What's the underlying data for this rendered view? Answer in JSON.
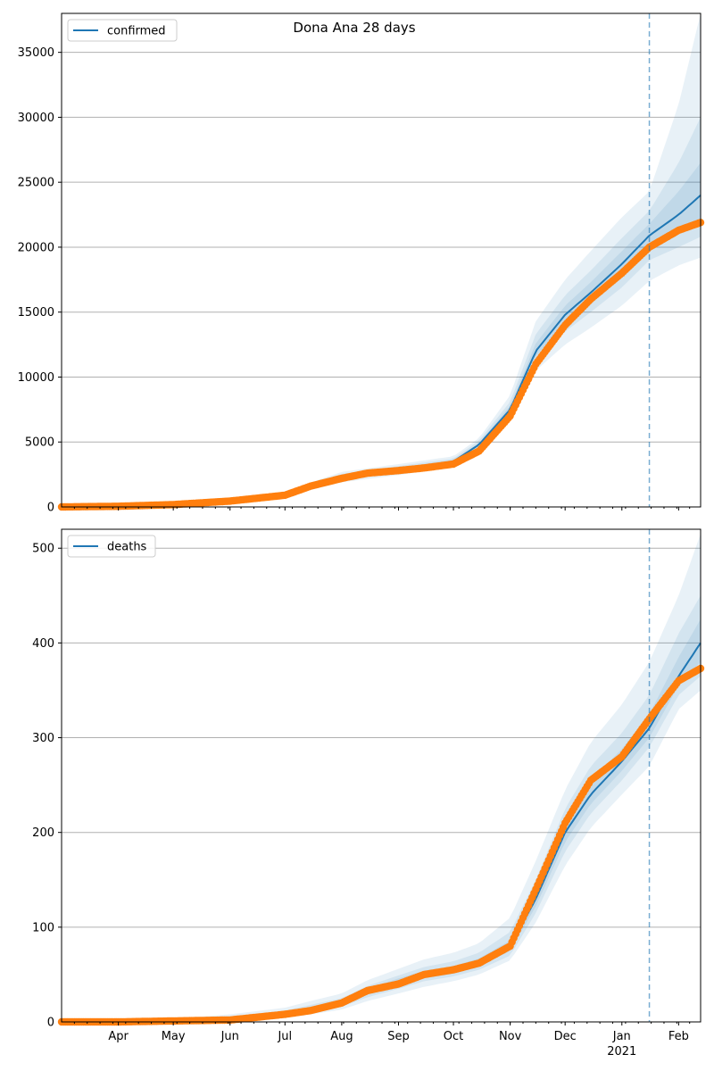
{
  "title": "Dona Ana 28 days",
  "colors": {
    "model_line": "#1f77b4",
    "observed_points": "#ff7f0e",
    "band": "#1f77b4",
    "grid": "#b0b0b0",
    "vline": "#1f77b4"
  },
  "x_axis": {
    "start": "2020-03-01",
    "end": "2021-02-13",
    "month_ticks": [
      {
        "date": "2020-04-01",
        "label": "Apr"
      },
      {
        "date": "2020-05-01",
        "label": "May"
      },
      {
        "date": "2020-06-01",
        "label": "Jun"
      },
      {
        "date": "2020-07-01",
        "label": "Jul"
      },
      {
        "date": "2020-08-01",
        "label": "Aug"
      },
      {
        "date": "2020-09-01",
        "label": "Sep"
      },
      {
        "date": "2020-10-01",
        "label": "Oct"
      },
      {
        "date": "2020-11-01",
        "label": "Nov"
      },
      {
        "date": "2020-12-01",
        "label": "Dec"
      },
      {
        "date": "2021-01-01",
        "label": "Jan"
      },
      {
        "date": "2021-02-01",
        "label": "Feb"
      }
    ],
    "year_label": {
      "date": "2021-01-01",
      "label": "2021"
    },
    "forecast_start": "2021-01-16"
  },
  "chart_data": [
    {
      "type": "line",
      "legend": "confirmed",
      "legend_position": "upper left",
      "ylim": [
        0,
        38000
      ],
      "yticks": [
        0,
        5000,
        10000,
        15000,
        20000,
        25000,
        30000,
        35000
      ],
      "grid": "y",
      "model": {
        "x": [
          "2020-03-01",
          "2020-04-01",
          "2020-05-01",
          "2020-06-01",
          "2020-07-01",
          "2020-08-01",
          "2020-09-01",
          "2020-10-01",
          "2020-10-15",
          "2020-11-01",
          "2020-11-15",
          "2020-12-01",
          "2020-12-15",
          "2021-01-01",
          "2021-01-16",
          "2021-02-01",
          "2021-02-13"
        ],
        "y": [
          0,
          60,
          200,
          500,
          1000,
          2300,
          2900,
          3500,
          4800,
          7500,
          12000,
          14800,
          16500,
          18700,
          20900,
          22500,
          24000
        ],
        "bands": [
          {
            "lower": [
              0,
              40,
              150,
              350,
              800,
              1900,
              2450,
              3100,
              4400,
              6800,
              10500,
              12500,
              13800,
              15500,
              17400,
              18600,
              19200
            ],
            "upper": [
              0,
              80,
              260,
              650,
              1200,
              2700,
              3300,
              3900,
              5300,
              8600,
              14300,
              17500,
              19700,
              22300,
              24300,
              31000,
              38000
            ]
          },
          {
            "lower": [
              0,
              48,
              170,
              420,
              880,
              2050,
              2650,
              3280,
              4580,
              7100,
              11200,
              13500,
              15000,
              16900,
              19000,
              20000,
              20800
            ],
            "upper": [
              0,
              72,
              230,
              580,
              1120,
              2550,
              3150,
              3720,
              5100,
              8100,
              13300,
              16300,
              18200,
              20700,
              22800,
              26500,
              30000
            ]
          },
          {
            "lower": [
              0,
              54,
              185,
              460,
              940,
              2170,
              2780,
              3390,
              4690,
              7300,
              11600,
              14100,
              15700,
              17800,
              20000,
              21200,
              22000
            ],
            "upper": [
              0,
              66,
              215,
              540,
              1060,
              2430,
              3020,
              3610,
              4910,
              7800,
              12600,
              15500,
              17300,
              19700,
              21800,
              24300,
              26500
            ]
          }
        ]
      },
      "observed": {
        "x": [
          "2020-03-01",
          "2020-04-01",
          "2020-05-01",
          "2020-06-01",
          "2020-07-01",
          "2020-07-15",
          "2020-08-01",
          "2020-08-15",
          "2020-09-01",
          "2020-09-15",
          "2020-10-01",
          "2020-10-15",
          "2020-11-01",
          "2020-11-15",
          "2020-12-01",
          "2020-12-15",
          "2021-01-01",
          "2021-01-16",
          "2021-02-01",
          "2021-02-13"
        ],
        "y": [
          0,
          50,
          180,
          450,
          900,
          1600,
          2200,
          2600,
          2800,
          3000,
          3300,
          4300,
          7000,
          11000,
          14000,
          16000,
          18000,
          20000,
          21300,
          21900
        ]
      }
    },
    {
      "type": "line",
      "legend": "deaths",
      "legend_position": "upper left",
      "ylim": [
        0,
        520
      ],
      "yticks": [
        0,
        100,
        200,
        300,
        400,
        500
      ],
      "grid": "y",
      "model": {
        "x": [
          "2020-03-01",
          "2020-04-01",
          "2020-05-01",
          "2020-06-01",
          "2020-07-01",
          "2020-07-15",
          "2020-08-01",
          "2020-08-15",
          "2020-09-01",
          "2020-09-15",
          "2020-10-01",
          "2020-10-15",
          "2020-11-01",
          "2020-11-15",
          "2020-12-01",
          "2020-12-15",
          "2021-01-01",
          "2021-01-16",
          "2021-02-01",
          "2021-02-13"
        ],
        "y": [
          0,
          0,
          1,
          3,
          8,
          14,
          20,
          32,
          42,
          50,
          55,
          62,
          80,
          130,
          200,
          240,
          275,
          310,
          365,
          400
        ],
        "bands": [
          {
            "lower": [
              0,
              0,
              0,
              1,
              4,
              8,
              13,
              22,
              30,
              37,
              43,
              50,
              65,
              105,
              165,
              205,
              240,
              270,
              330,
              350
            ],
            "upper": [
              0,
              1,
              3,
              8,
              15,
              22,
              30,
              44,
              56,
              66,
              73,
              83,
              110,
              170,
              245,
              295,
              335,
              380,
              450,
              515
            ]
          },
          {
            "lower": [
              0,
              0,
              0,
              2,
              6,
              10,
              16,
              26,
              35,
              43,
              48,
              55,
              70,
              115,
              180,
              220,
              255,
              290,
              345,
              365
            ],
            "upper": [
              0,
              1,
              2,
              6,
              12,
              18,
              25,
              38,
              49,
              58,
              64,
              73,
              95,
              150,
              225,
              270,
              305,
              345,
              410,
              450
            ]
          },
          {
            "lower": [
              0,
              0,
              1,
              2,
              7,
              12,
              18,
              29,
              38,
              46,
              51,
              58,
              75,
              122,
              190,
              230,
              265,
              300,
              355,
              380
            ],
            "upper": [
              0,
              0,
              2,
              5,
              10,
              16,
              22,
              35,
              46,
              54,
              59,
              67,
              86,
              140,
              212,
              255,
              288,
              325,
              385,
              425
            ]
          }
        ]
      },
      "observed": {
        "x": [
          "2020-03-01",
          "2020-04-01",
          "2020-05-01",
          "2020-06-01",
          "2020-07-01",
          "2020-07-15",
          "2020-08-01",
          "2020-08-15",
          "2020-09-01",
          "2020-09-15",
          "2020-10-01",
          "2020-10-15",
          "2020-11-01",
          "2020-11-15",
          "2020-12-01",
          "2020-12-15",
          "2021-01-01",
          "2021-01-16",
          "2021-02-01",
          "2021-02-13"
        ],
        "y": [
          0,
          0,
          1,
          2,
          8,
          12,
          20,
          33,
          40,
          50,
          55,
          62,
          80,
          140,
          210,
          255,
          280,
          320,
          360,
          373
        ]
      }
    }
  ]
}
